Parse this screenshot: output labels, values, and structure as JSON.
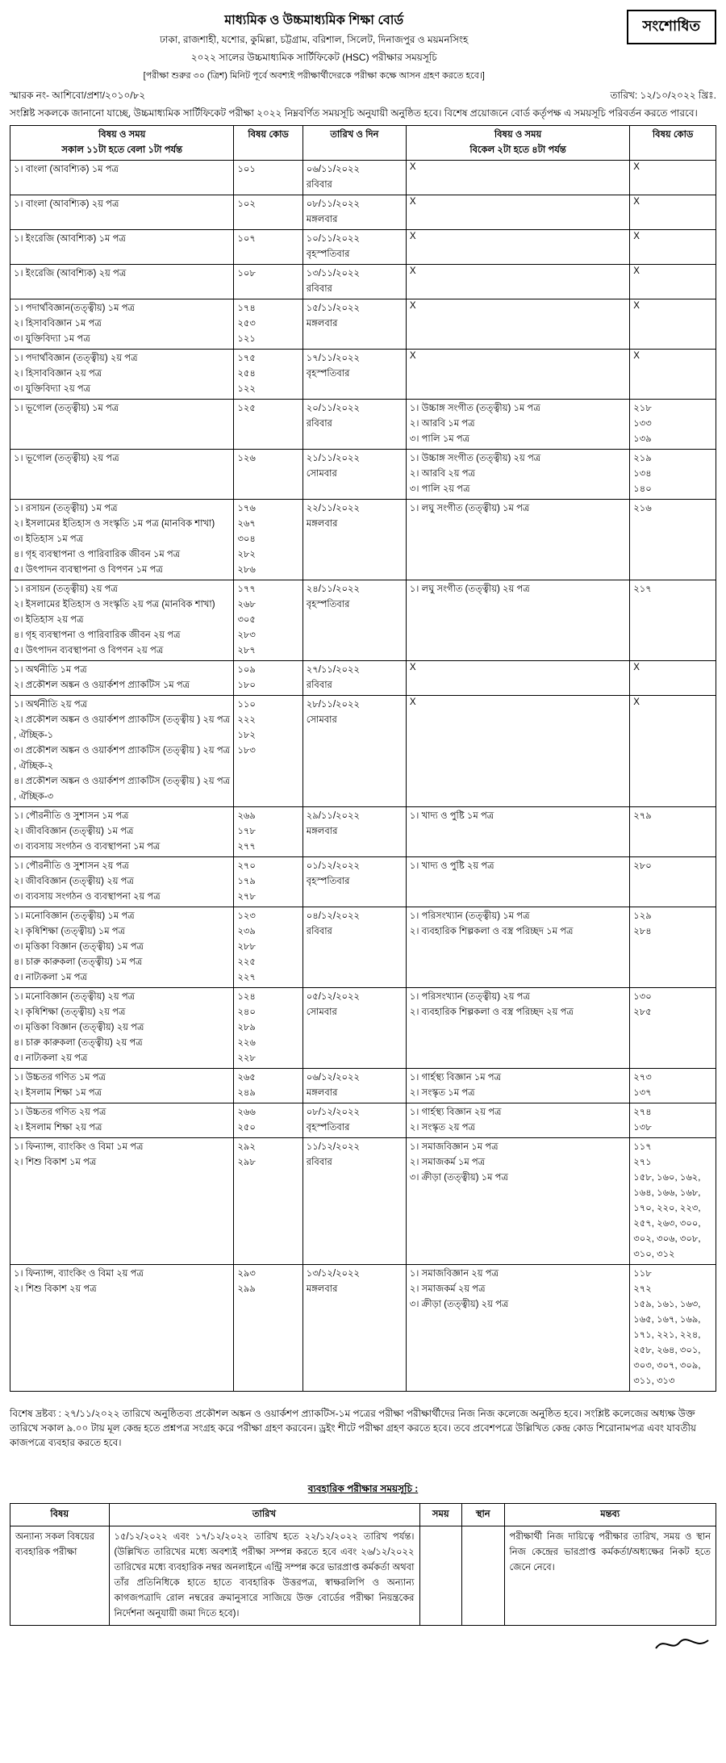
{
  "header": {
    "title": "মাধ্যমিক ও উচ্চমাধ্যমিক শিক্ষা বোর্ড",
    "boards": "ঢাকা, রাজশাহী, যশোর, কুমিল্লা, চট্টগ্রাম, বরিশাল, সিলেট, দিনাজপুর ও ময়মনসিংহ",
    "exam_line": "২০২২ সালের উচ্চমাধ্যমিক সার্টিফিকেট (HSC) পরীক্ষার সময়সূচি",
    "note": "[পরীক্ষা শুরুর ৩০ (ত্রিশ) মিনিট পূর্বে অবশ্যই পরীক্ষার্থীদেরকে পরীক্ষা কক্ষে আসন গ্রহণ করতে হবে।]",
    "revised": "সংশোধিত",
    "ref": "স্মারক নং- আশিবো/প্রশা/২০১০/৮২",
    "date": "তারিখ: ১২/১০/২০২২ খ্রিঃ.",
    "intro": "সংশ্লিষ্ট সকলকে জানানো যাচ্ছে, উচ্চমাধ্যমিক সার্টিফিকেট পরীক্ষা ২০২২ নিম্নবর্ণিত সময়সূচি অনুযায়ী অনুষ্ঠিত হবে। বিশেষ প্রয়োজনে বোর্ড কর্তৃপক্ষ এ সময়সূচি পরিবর্তন করতে পারবে।"
  },
  "columns": {
    "morning_head1": "বিষয় ও সময়",
    "morning_head2": "সকাল ১১টা হতে বেলা ১টা পর্যন্ত",
    "code": "বিষয় কোড",
    "date": "তারিখ ও দিন",
    "afternoon_head1": "বিষয় ও সময়",
    "afternoon_head2": "বিকেল ২টা হতে ৪টা পর্যন্ত",
    "code2": "বিষয় কোড"
  },
  "rows": [
    {
      "morning": [
        "১। বাংলা (আবশ্যিক) ১ম পত্র"
      ],
      "codes": [
        "১০১"
      ],
      "date": "০৬/১১/২০২২\nরবিবার",
      "afternoon_x": true
    },
    {
      "morning": [
        "১। বাংলা (আবশ্যিক) ২য় পত্র"
      ],
      "codes": [
        "১০২"
      ],
      "date": "০৮/১১/২০২২\nমঙ্গলবার",
      "afternoon_x": true
    },
    {
      "morning": [
        "১। ইংরেজি (আবশ্যিক) ১ম পত্র"
      ],
      "codes": [
        "১০৭"
      ],
      "date": "১০/১১/২০২২\nবৃহস্পতিবার",
      "afternoon_x": true
    },
    {
      "morning": [
        "১। ইংরেজি (আবশ্যিক) ২য় পত্র"
      ],
      "codes": [
        "১০৮"
      ],
      "date": "১৩/১১/২০২২\nরবিবার",
      "afternoon_x": true
    },
    {
      "morning": [
        "১। পদার্থবিজ্ঞান(তত্ত্বীয়) ১ম পত্র",
        "২। হিসাববিজ্ঞান ১ম পত্র",
        "৩। যুক্তিবিদ্যা ১ম পত্র"
      ],
      "codes": [
        "১৭৪",
        "২৫৩",
        "১২১"
      ],
      "date": "১৫/১১/২০২২\nমঙ্গলবার",
      "afternoon_x": true
    },
    {
      "morning": [
        "১। পদার্থবিজ্ঞান (তত্ত্বীয়) ২য় পত্র",
        "২। হিসাববিজ্ঞান ২য় পত্র",
        "৩। যুক্তিবিদ্যা ২য় পত্র"
      ],
      "codes": [
        "১৭৫",
        "২৫৪",
        "১২২"
      ],
      "date": "১৭/১১/২০২২\nবৃহস্পতিবার",
      "afternoon_x": true
    },
    {
      "morning": [
        "১। ভূগোল (তত্ত্বীয়) ১ম পত্র"
      ],
      "codes": [
        "১২৫"
      ],
      "date": "২০/১১/২০২২\nরবিবার",
      "afternoon": [
        "১। উচ্চাঙ্গ সংগীত (তত্ত্বীয়) ১ম পত্র",
        "২। আরবি ১ম পত্র",
        "৩। পালি ১ম পত্র"
      ],
      "codes2": [
        "২১৮",
        "১৩৩",
        "১৩৯"
      ]
    },
    {
      "morning": [
        "১। ভূগোল (তত্ত্বীয়) ২য় পত্র"
      ],
      "codes": [
        "১২৬"
      ],
      "date": "২১/১১/২০২২\nসোমবার",
      "afternoon": [
        "১। উচ্চাঙ্গ সংগীত (তত্ত্বীয়) ২য় পত্র",
        "২। আরবি ২য় পত্র",
        "৩। পালি ২য় পত্র"
      ],
      "codes2": [
        "২১৯",
        "১৩৪",
        "১৪০"
      ]
    },
    {
      "morning": [
        "১। রসায়ন (তত্ত্বীয়) ১ম পত্র",
        "২। ইসলামের ইতিহাস ও সংস্কৃতি ১ম পত্র (মানবিক শাখা)",
        "৩। ইতিহাস ১ম পত্র",
        "৪। গৃহ ব্যবস্থাপনা ও পারিবারিক জীবন ১ম পত্র",
        "৫। উৎপাদন ব্যবস্থাপনা ও বিপণন ১ম পত্র"
      ],
      "codes": [
        "১৭৬",
        "২৬৭",
        "৩০৪",
        "২৮২",
        "২৮৬"
      ],
      "date": "২২/১১/২০২২\nমঙ্গলবার",
      "afternoon": [
        "১। লঘু সংগীত (তত্ত্বীয়) ১ম পত্র"
      ],
      "codes2": [
        "২১৬"
      ]
    },
    {
      "morning": [
        "১। রসায়ন (তত্ত্বীয়) ২য় পত্র",
        "২। ইসলামের ইতিহাস ও সংস্কৃতি ২য় পত্র (মানবিক শাখা)",
        "৩। ইতিহাস ২য় পত্র",
        "৪। গৃহ ব্যবস্থাপনা ও পারিবারিক জীবন ২য় পত্র",
        "৫। উৎপাদন ব্যবস্থাপনা ও বিপণন ২য় পত্র"
      ],
      "codes": [
        "১৭৭",
        "২৬৮",
        "৩০৫",
        "২৮৩",
        "২৮৭"
      ],
      "date": "২৪/১১/২০২২\nবৃহস্পতিবার",
      "afternoon": [
        "১। লঘু সংগীত (তত্ত্বীয়) ২য় পত্র"
      ],
      "codes2": [
        "২১৭"
      ]
    },
    {
      "morning": [
        "১। অর্থনীতি ১ম পত্র",
        "২। প্রকৌশল অঙ্কন ও ওয়ার্কশপ প্র্যাকটিস ১ম পত্র"
      ],
      "codes": [
        "১০৯",
        "১৮০"
      ],
      "date": "২৭/১১/২০২২\nরবিবার",
      "afternoon_x": true
    },
    {
      "morning": [
        "১। অর্থনীতি ২য় পত্র",
        "২। প্রকৌশল অঙ্কন ও ওয়ার্কশপ প্র্যাকটিস (তত্ত্বীয় ) ২য় পত্র , ঐচ্ছিক-১",
        "৩। প্রকৌশল অঙ্কন ও ওয়ার্কশপ প্র্যাকটিস (তত্ত্বীয় ) ২য় পত্র , ঐচ্ছিক-২",
        "৪। প্রকৌশল অঙ্কন ও ওয়ার্কশপ প্র্যাকটিস (তত্ত্বীয় ) ২য় পত্র , ঐচ্ছিক-৩"
      ],
      "codes": [
        "১১০",
        "২২২",
        "১৮২",
        "১৮৩"
      ],
      "date": "২৮/১১/২০২২\nসোমবার",
      "afternoon_x": true
    },
    {
      "morning": [
        "১। পৌরনীতি ও সুশাসন ১ম পত্র",
        "২। জীববিজ্ঞান (তত্ত্বীয়) ১ম পত্র",
        "৩। ব্যবসায় সংগঠন ও ব্যবস্থাপনা ১ম পত্র"
      ],
      "codes": [
        "২৬৯",
        "১৭৮",
        "২৭৭"
      ],
      "date": "২৯/১১/২০২২\nমঙ্গলবার",
      "afternoon": [
        "১। খাদ্য ও পুষ্টি ১ম পত্র"
      ],
      "codes2": [
        "২৭৯"
      ]
    },
    {
      "morning": [
        "১। পৌরনীতি ও সুশাসন ২য় পত্র",
        "২। জীববিজ্ঞান (তত্ত্বীয়) ২য় পত্র",
        "৩। ব্যবসায় সংগঠন ও ব্যবস্থাপনা ২য় পত্র"
      ],
      "codes": [
        "২৭০",
        "১৭৯",
        "২৭৮"
      ],
      "date": "০১/১২/২০২২\nবৃহস্পতিবার",
      "afternoon": [
        "১। খাদ্য ও পুষ্টি ২য় পত্র"
      ],
      "codes2": [
        "২৮০"
      ]
    },
    {
      "morning": [
        "১। মনোবিজ্ঞান (তত্ত্বীয়) ১ম পত্র",
        "২। কৃষিশিক্ষা (তত্ত্বীয়) ১ম পত্র",
        "৩। মৃত্তিকা বিজ্ঞান (তত্ত্বীয়) ১ম পত্র",
        "৪। চারু কারুকলা  (তত্ত্বীয়) ১ম পত্র",
        "৫। নাট্যকলা ১ম পত্র"
      ],
      "codes": [
        "১২৩",
        "২৩৯",
        "২৮৮",
        "২২৫",
        "২২৭"
      ],
      "date": "০৪/১২/২০২২\nরবিবার",
      "afternoon": [
        "১। পরিসংখ্যান (তত্ত্বীয়) ১ম পত্র",
        "২। ব্যবহারিক শিল্পকলা ও বস্ত্র পরিচ্ছদ ১ম পত্র"
      ],
      "codes2": [
        "১২৯",
        "২৮৪"
      ]
    },
    {
      "morning": [
        "১। মনোবিজ্ঞান (তত্ত্বীয়) ২য় পত্র",
        "২। কৃষিশিক্ষা (তত্ত্বীয়) ২য় পত্র",
        "৩। মৃত্তিকা বিজ্ঞান (তত্ত্বীয়) ২য় পত্র",
        "৪। চারু কারুকলা  (তত্ত্বীয়) ২য় পত্র",
        "৫। নাট্যকলা ২য় পত্র"
      ],
      "codes": [
        "১২৪",
        "২৪০",
        "২৮৯",
        "২২৬",
        "২২৮"
      ],
      "date": "০৫/১২/২০২২\nসোমবার",
      "afternoon": [
        "১। পরিসংখ্যান (তত্ত্বীয়) ২য় পত্র",
        "২। ব্যবহারিক শিল্পকলা ও বস্ত্র পরিচ্ছদ ২য় পত্র"
      ],
      "codes2": [
        "১৩০",
        "২৮৫"
      ]
    },
    {
      "morning": [
        "১। উচ্চতর গণিত ১ম পত্র",
        "২। ইসলাম শিক্ষা ১ম পত্র"
      ],
      "codes": [
        "২৬৫",
        "২৪৯"
      ],
      "date": "০৬/১২/২০২২\nমঙ্গলবার",
      "afternoon": [
        "১। গার্হস্থ্য বিজ্ঞান ১ম পত্র",
        "২। সংস্কৃত ১ম পত্র"
      ],
      "codes2": [
        "২৭৩",
        "১৩৭"
      ]
    },
    {
      "morning": [
        "১। উচ্চতর গণিত ২য় পত্র",
        "২। ইসলাম শিক্ষা ২য় পত্র"
      ],
      "codes": [
        "২৬৬",
        "২৫০"
      ],
      "date": "০৮/১২/২০২২\nবৃহস্পতিবার",
      "afternoon": [
        "১। গার্হস্থ্য বিজ্ঞান ২য় পত্র",
        "২। সংস্কৃত ২য় পত্র"
      ],
      "codes2": [
        "২৭৪",
        "১৩৮"
      ]
    },
    {
      "morning": [
        "১। ফিন্যান্স, ব্যাংকিং ও বিমা ১ম পত্র",
        "২। শিশু বিকাশ ১ম পত্র"
      ],
      "codes": [
        "২৯২",
        "২৯৮"
      ],
      "date": "১১/১২/২০২২\nরবিবার",
      "afternoon": [
        "১। সমাজবিজ্ঞান ১ম পত্র",
        "২। সমাজকর্ম ১ম পত্র",
        "৩। ক্রীড়া (তত্ত্বীয়) ১ম পত্র"
      ],
      "codes2": [
        "১১৭",
        "২৭১",
        "১৫৮, ১৬০, ১৬২, ১৬৪, ১৬৬, ১৬৮, ১৭০, ২২০, ২২৩, ২৫৭, ২৬৩, ৩০০, ৩০২, ৩০৬, ৩০৮, ৩১০, ৩১২"
      ]
    },
    {
      "morning": [
        "১। ফিন্যান্স, ব্যাংকিং ও বিমা ২য় পত্র",
        "২। শিশু বিকাশ ২য় পত্র"
      ],
      "codes": [
        "২৯৩",
        "২৯৯"
      ],
      "date": "১৩/১২/২০২২\nমঙ্গলবার",
      "afternoon": [
        "১। সমাজবিজ্ঞান ২য় পত্র",
        "২। সমাজকর্ম ২য় পত্র",
        "৩। ক্রীড়া (তত্ত্বীয়) ২য় পত্র"
      ],
      "codes2": [
        "১১৮",
        "২৭২",
        "১৫৯, ১৬১, ১৬৩, ১৬৫, ১৬৭, ১৬৯, ১৭১, ২২১, ২২৪, ২৫৮, ২৬৪, ৩০১, ৩০৩, ৩০৭, ৩০৯, ৩১১, ৩১৩"
      ]
    }
  ],
  "footnote": "বিশেষ দ্রষ্টব্য : ২৭/১১/২০২২ তারিখে অনুষ্ঠিতব্য প্রকৌশল অঙ্কন ও ওয়ার্কশপ প্র্যাকটিস-১ম পত্রের পরীক্ষা পরীক্ষার্থীদের নিজ নিজ কলেজে অনুষ্ঠিত হবে। সংশ্লিষ্ট কলেজের অধ্যক্ষ উক্ত তারিখে সকাল ৯.০০ টায় মূল কেন্দ্র হতে প্রশ্নপত্র সংগ্রহ করে পরীক্ষা গ্রহণ করবেন। ড্রইং শীটে পরীক্ষা গ্রহণ করতে হবে। তবে প্রবেশপত্রে উল্লিখিত কেন্দ্র কোড শিরোনামপত্র এবং যাবতীয় কাজপত্রে ব্যবহার করতে হবে।",
  "practical": {
    "title": "ব্যবহারিক পরীক্ষার সময়সূচি :",
    "cols": {
      "c1": "বিষয়",
      "c2": "তারিখ",
      "c3": "সময়",
      "c4": "স্থান",
      "c5": "মন্তব্য"
    },
    "row": {
      "subject": "অন্যান্য সকল বিষয়ের ব্যবহারিক পরীক্ষা",
      "date": "১৫/১২/২০২২ এবং ১৭/১২/২০২২ তারিখ হতে ২২/১২/২০২২ তারিখ পর্যন্ত। (উল্লিখিত তারিখের মধ্যে অবশ্যই পরীক্ষা সম্পন্ন করতে হবে এবং ২৬/১২/২০২২ তারিখের মধ্যে ব্যবহারিক নম্বর অনলাইনে এন্ট্রি সম্পন্ন করে ভারপ্রাপ্ত কর্মকর্তা অথবা তাঁর প্রতিনিধিকে হাতে হাতে ব্যবহারিক উত্তরপত্র, স্বাক্ষরলিপি ও অন্যান্য কাগজপত্রাদি রোল নম্বরের ক্রমানুসারে সাজিয়ে উক্ত বোর্ডের পরীক্ষা নিয়ন্ত্রকের নির্দেশনা অনুযায়ী জমা দিতে হবে)।",
      "time": "",
      "place": "",
      "remark": "পরীক্ষার্থী নিজ দায়িত্বে পরীক্ষার তারিখ, সময় ও স্থান নিজ কেন্দ্রের ভারপ্রাপ্ত কর্মকর্তা/অধ্যক্ষের নিকট হতে জেনে নেবে।"
    }
  },
  "signature": "——"
}
